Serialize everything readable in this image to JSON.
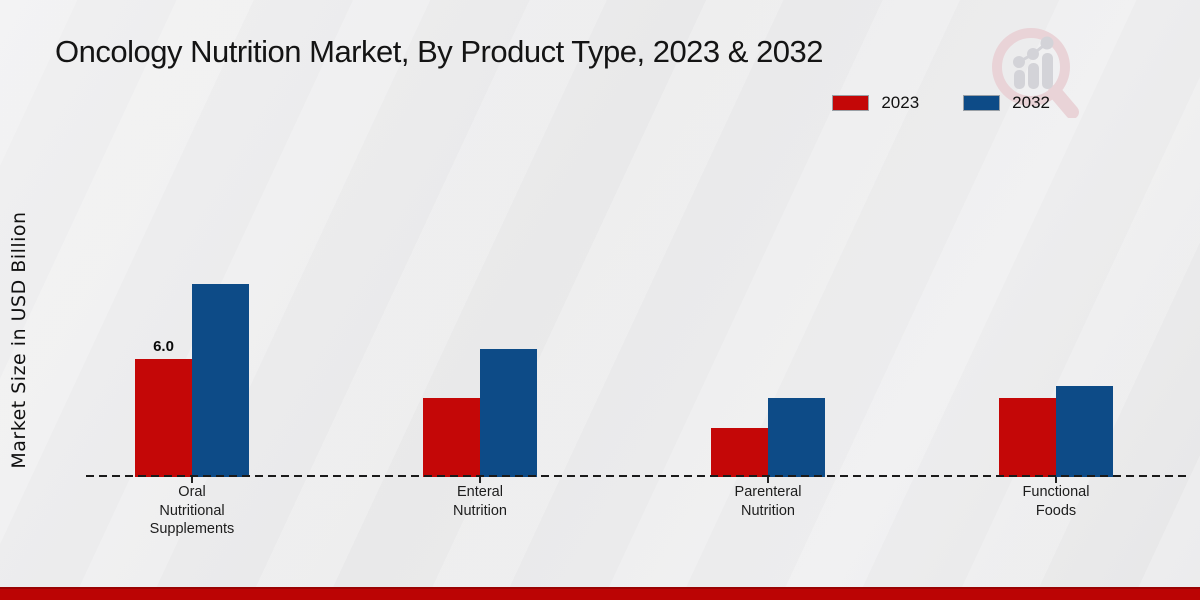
{
  "chart_data": {
    "type": "bar",
    "title": "Oncology Nutrition Market, By Product Type, 2023 & 2032",
    "xlabel": "",
    "ylabel": "Market Size in USD Billion",
    "categories": [
      "Oral Nutritional Supplements",
      "Enteral Nutrition",
      "Parenteral Nutrition",
      "Functional Foods"
    ],
    "series": [
      {
        "name": "2023",
        "color": "#c40707",
        "values": [
          6.0,
          4.0,
          2.5,
          4.0
        ]
      },
      {
        "name": "2032",
        "color": "#0d4b87",
        "values": [
          9.8,
          6.5,
          4.0,
          4.6
        ]
      }
    ],
    "bar_value_labels": [
      {
        "series_index": 0,
        "category_index": 0,
        "text": "6.0"
      }
    ],
    "ylim": [
      0,
      11
    ],
    "grid": false,
    "legend_position": "top-right",
    "baseline_style": "dashed"
  },
  "footer": {
    "stripe_color": "#bb0404"
  },
  "watermark": {
    "icon": "magnifier-bar-chart-logo"
  }
}
